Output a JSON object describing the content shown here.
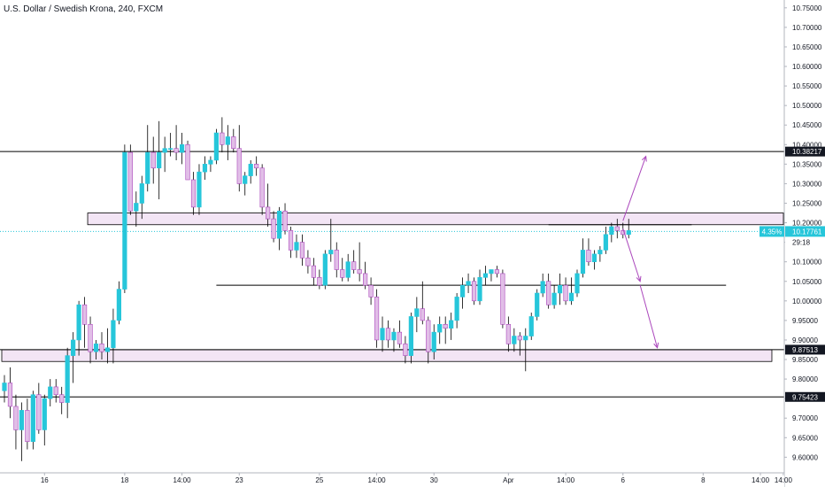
{
  "header": {
    "title": "U.S. Dollar / Swedish Krona, 240, FXCM"
  },
  "colors": {
    "bull": "#26c6da",
    "bear": "#e1bee7",
    "bear_border": "#ab47bc",
    "zone_fill": "#f3e5f5",
    "current_line": "#26c6da",
    "arrow": "#ab47bc",
    "level": "#000000"
  },
  "chart_data": {
    "type": "candlestick",
    "symbol": "U.S. Dollar / Swedish Krona",
    "interval": "240",
    "source": "FXCM",
    "ylim": [
      9.56,
      10.77
    ],
    "y_ticks": [
      9.6,
      9.65,
      9.7,
      9.75,
      9.8,
      9.85,
      9.9,
      9.95,
      10.0,
      10.05,
      10.1,
      10.15,
      10.2,
      10.25,
      10.3,
      10.35,
      10.4,
      10.45,
      10.5,
      10.55,
      10.6,
      10.65,
      10.7,
      10.75
    ],
    "y_tick_labels": [
      "9.60000",
      "9.65000",
      "9.70000",
      "9.75000",
      "9.80000",
      "9.85000",
      "9.90000",
      "9.95000",
      "10.00000",
      "10.05000",
      "10.10000",
      "10.15000",
      "10.20000",
      "10.25000",
      "10.30000",
      "10.35000",
      "10.40000",
      "10.45000",
      "10.50000",
      "10.55000",
      "10.60000",
      "10.65000",
      "10.70000",
      "10.75000"
    ],
    "x_ticks": [
      {
        "label": "16",
        "bar": 7
      },
      {
        "label": "18",
        "bar": 21
      },
      {
        "label": "14:00",
        "bar": 31
      },
      {
        "label": "23",
        "bar": 41
      },
      {
        "label": "25",
        "bar": 55
      },
      {
        "label": "14:00",
        "bar": 65
      },
      {
        "label": "30",
        "bar": 75
      },
      {
        "label": "Apr",
        "bar": 88
      },
      {
        "label": "14:00",
        "bar": 98
      },
      {
        "label": "6",
        "bar": 108
      },
      {
        "label": "8",
        "bar": 122
      },
      {
        "label": "14:00",
        "bar": 132
      },
      {
        "label": "14:00",
        "bar": 136
      }
    ],
    "candles": [
      [
        9.77,
        9.81,
        9.74,
        9.79
      ],
      [
        9.79,
        9.83,
        9.7,
        9.73
      ],
      [
        9.73,
        9.76,
        9.62,
        9.67
      ],
      [
        9.67,
        9.74,
        9.59,
        9.72
      ],
      [
        9.72,
        9.75,
        9.62,
        9.64
      ],
      [
        9.64,
        9.77,
        9.62,
        9.76
      ],
      [
        9.76,
        9.79,
        9.66,
        9.67
      ],
      [
        9.67,
        9.76,
        9.63,
        9.75
      ],
      [
        9.75,
        9.8,
        9.73,
        9.78
      ],
      [
        9.78,
        9.8,
        9.74,
        9.76
      ],
      [
        9.76,
        9.78,
        9.71,
        9.74
      ],
      [
        9.74,
        9.88,
        9.7,
        9.86
      ],
      [
        9.86,
        9.92,
        9.79,
        9.9
      ],
      [
        9.9,
        10.0,
        9.86,
        9.99
      ],
      [
        9.99,
        10.01,
        9.88,
        9.94
      ],
      [
        9.94,
        9.96,
        9.84,
        9.87
      ],
      [
        9.87,
        9.9,
        9.85,
        9.89
      ],
      [
        9.89,
        9.92,
        9.85,
        9.87
      ],
      [
        9.87,
        9.93,
        9.84,
        9.88
      ],
      [
        9.88,
        9.98,
        9.84,
        9.95
      ],
      [
        9.95,
        10.05,
        9.94,
        10.03
      ],
      [
        10.03,
        10.4,
        10.02,
        10.38
      ],
      [
        10.38,
        10.4,
        10.22,
        10.23
      ],
      [
        10.23,
        10.28,
        10.19,
        10.25
      ],
      [
        10.25,
        10.32,
        10.21,
        10.3
      ],
      [
        10.3,
        10.45,
        10.28,
        10.38
      ],
      [
        10.38,
        10.42,
        10.3,
        10.34
      ],
      [
        10.34,
        10.46,
        10.26,
        10.38
      ],
      [
        10.38,
        10.42,
        10.33,
        10.39
      ],
      [
        10.39,
        10.43,
        10.37,
        10.39
      ],
      [
        10.39,
        10.45,
        10.36,
        10.38
      ],
      [
        10.38,
        10.43,
        10.35,
        10.4
      ],
      [
        10.4,
        10.41,
        10.31,
        10.31
      ],
      [
        10.31,
        10.33,
        10.22,
        10.24
      ],
      [
        10.24,
        10.35,
        10.22,
        10.33
      ],
      [
        10.33,
        10.37,
        10.31,
        10.35
      ],
      [
        10.35,
        10.37,
        10.33,
        10.36
      ],
      [
        10.36,
        10.44,
        10.35,
        10.43
      ],
      [
        10.43,
        10.47,
        10.38,
        10.4
      ],
      [
        10.4,
        10.45,
        10.36,
        10.42
      ],
      [
        10.42,
        10.44,
        10.38,
        10.39
      ],
      [
        10.39,
        10.45,
        10.28,
        10.3
      ],
      [
        10.3,
        10.33,
        10.27,
        10.32
      ],
      [
        10.32,
        10.36,
        10.3,
        10.35
      ],
      [
        10.35,
        10.37,
        10.32,
        10.34
      ],
      [
        10.34,
        10.35,
        10.22,
        10.24
      ],
      [
        10.24,
        10.3,
        10.19,
        10.21
      ],
      [
        10.21,
        10.23,
        10.15,
        10.16
      ],
      [
        10.16,
        10.24,
        10.13,
        10.23
      ],
      [
        10.23,
        10.25,
        10.17,
        10.18
      ],
      [
        10.18,
        10.19,
        10.11,
        10.13
      ],
      [
        10.13,
        10.17,
        10.11,
        10.15
      ],
      [
        10.15,
        10.17,
        10.09,
        10.11
      ],
      [
        10.11,
        10.13,
        10.07,
        10.09
      ],
      [
        10.09,
        10.11,
        10.04,
        10.06
      ],
      [
        10.06,
        10.08,
        10.03,
        10.04
      ],
      [
        10.04,
        10.13,
        10.03,
        10.12
      ],
      [
        10.12,
        10.21,
        10.1,
        10.13
      ],
      [
        10.13,
        10.15,
        10.06,
        10.08
      ],
      [
        10.08,
        10.11,
        10.05,
        10.06
      ],
      [
        10.06,
        10.12,
        10.05,
        10.1
      ],
      [
        10.1,
        10.13,
        10.07,
        10.08
      ],
      [
        10.08,
        10.15,
        10.05,
        10.07
      ],
      [
        10.07,
        10.1,
        10.03,
        10.04
      ],
      [
        10.04,
        10.06,
        9.99,
        10.01
      ],
      [
        10.01,
        10.03,
        9.88,
        9.9
      ],
      [
        9.9,
        9.96,
        9.87,
        9.93
      ],
      [
        9.93,
        9.95,
        9.88,
        9.9
      ],
      [
        9.9,
        9.93,
        9.87,
        9.92
      ],
      [
        9.92,
        9.95,
        9.88,
        9.89
      ],
      [
        9.89,
        9.91,
        9.84,
        9.86
      ],
      [
        9.86,
        9.97,
        9.84,
        9.96
      ],
      [
        9.96,
        10.01,
        9.92,
        9.98
      ],
      [
        9.98,
        10.05,
        9.94,
        9.95
      ],
      [
        9.95,
        9.96,
        9.84,
        9.87
      ],
      [
        9.87,
        9.94,
        9.85,
        9.92
      ],
      [
        9.92,
        9.96,
        9.89,
        9.94
      ],
      [
        9.94,
        9.96,
        9.89,
        9.93
      ],
      [
        9.93,
        9.97,
        9.9,
        9.95
      ],
      [
        9.95,
        10.02,
        9.93,
        10.01
      ],
      [
        10.01,
        10.06,
        9.98,
        10.04
      ],
      [
        10.04,
        10.07,
        10.02,
        10.05
      ],
      [
        10.05,
        10.06,
        9.99,
        10.0
      ],
      [
        10.0,
        10.08,
        9.99,
        10.06
      ],
      [
        10.06,
        10.09,
        10.04,
        10.07
      ],
      [
        10.07,
        10.08,
        10.05,
        10.08
      ],
      [
        10.08,
        10.09,
        10.06,
        10.07
      ],
      [
        10.07,
        10.08,
        9.93,
        9.94
      ],
      [
        9.94,
        9.96,
        9.87,
        9.89
      ],
      [
        9.89,
        9.93,
        9.87,
        9.91
      ],
      [
        9.91,
        9.92,
        9.86,
        9.9
      ],
      [
        9.9,
        9.93,
        9.82,
        9.91
      ],
      [
        9.91,
        9.97,
        9.9,
        9.96
      ],
      [
        9.96,
        10.03,
        9.95,
        10.02
      ],
      [
        10.02,
        10.07,
        10.01,
        10.05
      ],
      [
        10.05,
        10.07,
        9.98,
        9.99
      ],
      [
        9.99,
        10.04,
        9.98,
        10.02
      ],
      [
        10.02,
        10.07,
        9.99,
        10.04
      ],
      [
        10.04,
        10.06,
        9.99,
        10.0
      ],
      [
        10.0,
        10.06,
        9.99,
        10.02
      ],
      [
        10.02,
        10.08,
        10.01,
        10.07
      ],
      [
        10.07,
        10.16,
        10.06,
        10.13
      ],
      [
        10.13,
        10.16,
        10.09,
        10.1
      ],
      [
        10.1,
        10.13,
        10.08,
        10.12
      ],
      [
        10.12,
        10.14,
        10.1,
        10.13
      ],
      [
        10.13,
        10.19,
        10.12,
        10.17
      ],
      [
        10.17,
        10.2,
        10.15,
        10.19
      ],
      [
        10.19,
        10.21,
        10.16,
        10.18
      ],
      [
        10.18,
        10.2,
        10.16,
        10.17
      ],
      [
        10.17,
        10.21,
        10.16,
        10.18
      ]
    ],
    "levels": [
      {
        "price": 10.38217,
        "label": "10.38217"
      },
      {
        "price": 9.87513,
        "label": "9.87513"
      },
      {
        "price": 9.75423,
        "label": "9.75423"
      }
    ],
    "zones": [
      {
        "from_bar": 15,
        "to_bar": 137,
        "top": 10.225,
        "bottom": 10.195
      },
      {
        "from_bar": 0,
        "to_bar": 134,
        "top": 9.875,
        "bottom": 9.845
      }
    ],
    "trend_lines": [
      {
        "from_bar": 37,
        "to_bar": 126,
        "price": 10.04
      },
      {
        "from_bar": 95,
        "to_bar": 120,
        "price": 10.195
      }
    ],
    "arrows": [
      {
        "from_bar": 108,
        "from_price": 10.205,
        "to_bar": 112,
        "to_price": 10.37
      },
      {
        "from_bar": 108,
        "from_price": 10.185,
        "to_bar": 111,
        "to_price": 10.05
      },
      {
        "from_bar": 111,
        "from_price": 10.04,
        "to_bar": 114,
        "to_price": 9.88
      }
    ],
    "current_price": {
      "value": 10.17761,
      "label": "10.17761",
      "change": "4.35%",
      "countdown": "29:18"
    }
  }
}
